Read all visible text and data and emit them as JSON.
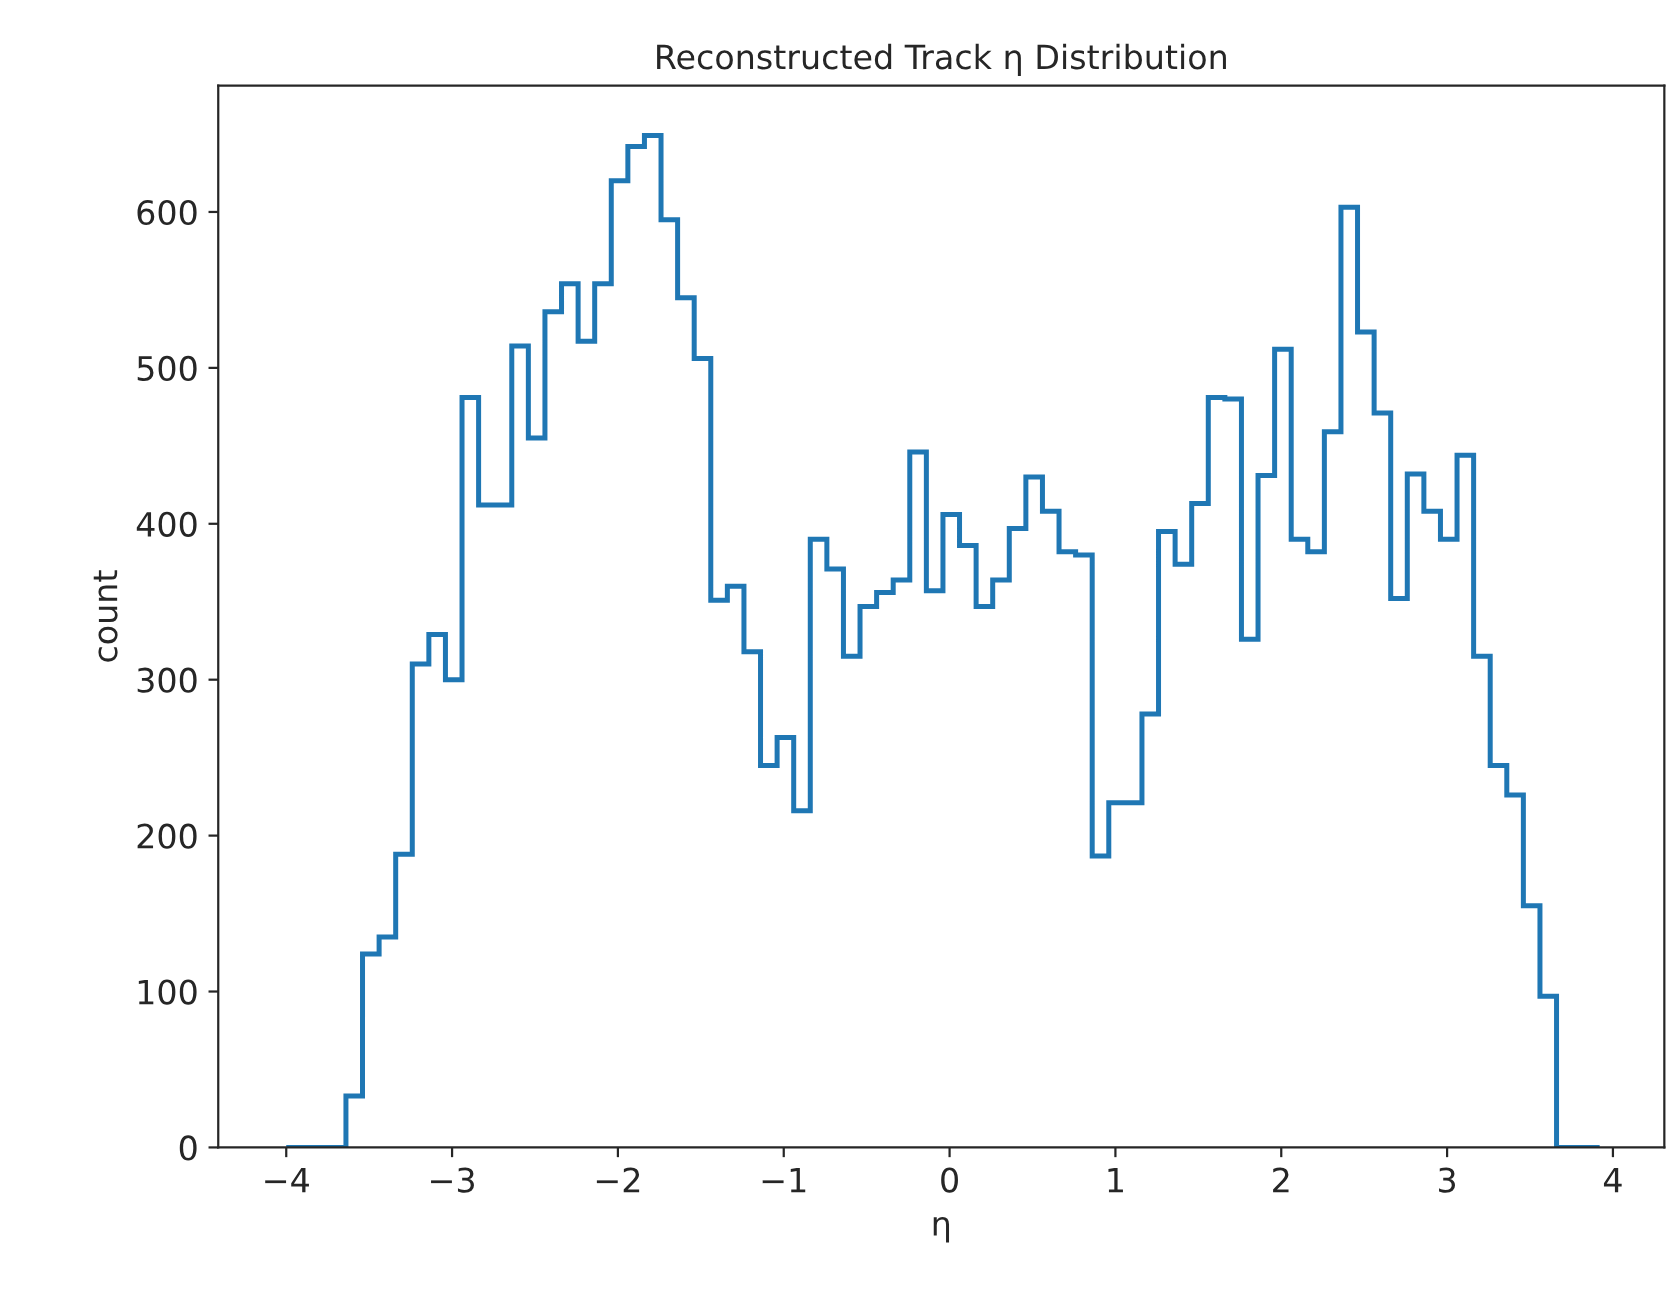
{
  "chart_data": {
    "type": "histogram",
    "title": "Reconstructed Track η Distribution",
    "xlabel": "η",
    "ylabel": "count",
    "color": "#1f77b4",
    "bins": [
      -4.0,
      -3.64,
      -3.54,
      -3.44,
      -3.34,
      -3.24,
      -3.14,
      -3.04,
      -2.94,
      -2.84,
      -2.74,
      -2.64,
      -2.54,
      -2.44,
      -2.34,
      -2.24,
      -2.14,
      -2.04,
      -1.94,
      -1.84,
      -1.74,
      -1.64,
      -1.54,
      -1.44,
      -1.34,
      -1.24,
      -1.14,
      -1.04,
      -0.94,
      -0.84,
      -0.74,
      -0.64,
      -0.54,
      -0.44,
      -0.34,
      -0.24,
      -0.14,
      -0.04,
      0.06,
      0.16,
      0.26,
      0.36,
      0.46,
      0.56,
      0.66,
      0.76,
      0.86,
      0.96,
      1.06,
      1.16,
      1.26,
      1.36,
      1.46,
      1.56,
      1.66,
      1.76,
      1.86,
      1.96,
      2.06,
      2.16,
      2.26,
      2.36,
      2.46,
      2.56,
      2.66,
      2.76,
      2.86,
      2.96,
      3.06,
      3.16,
      3.26,
      3.36,
      3.46,
      3.56,
      3.66,
      3.92
    ],
    "values": [
      0,
      33,
      124,
      135,
      188,
      310,
      329,
      300,
      481,
      412,
      412,
      514,
      455,
      536,
      554,
      517,
      554,
      620,
      642,
      649,
      595,
      545,
      506,
      351,
      360,
      318,
      245,
      263,
      216,
      390,
      371,
      315,
      347,
      356,
      364,
      446,
      357,
      406,
      386,
      347,
      364,
      397,
      430,
      408,
      382,
      380,
      187,
      221,
      221,
      278,
      395,
      374,
      413,
      481,
      480,
      326,
      431,
      512,
      390,
      382,
      459,
      603,
      523,
      471,
      352,
      432,
      408,
      390,
      444,
      315,
      245,
      226,
      155,
      97,
      0
    ],
    "xlim": [
      -4.41,
      4.31
    ],
    "ylim": [
      0,
      681
    ],
    "xticks": [
      {
        "value": -4,
        "label": "−4"
      },
      {
        "value": -3,
        "label": "−3"
      },
      {
        "value": -2,
        "label": "−2"
      },
      {
        "value": -1,
        "label": "−1"
      },
      0,
      1,
      2,
      3,
      4
    ],
    "yticks": [
      0,
      100,
      200,
      300,
      400,
      500,
      600
    ],
    "grid": false,
    "legend": false
  }
}
